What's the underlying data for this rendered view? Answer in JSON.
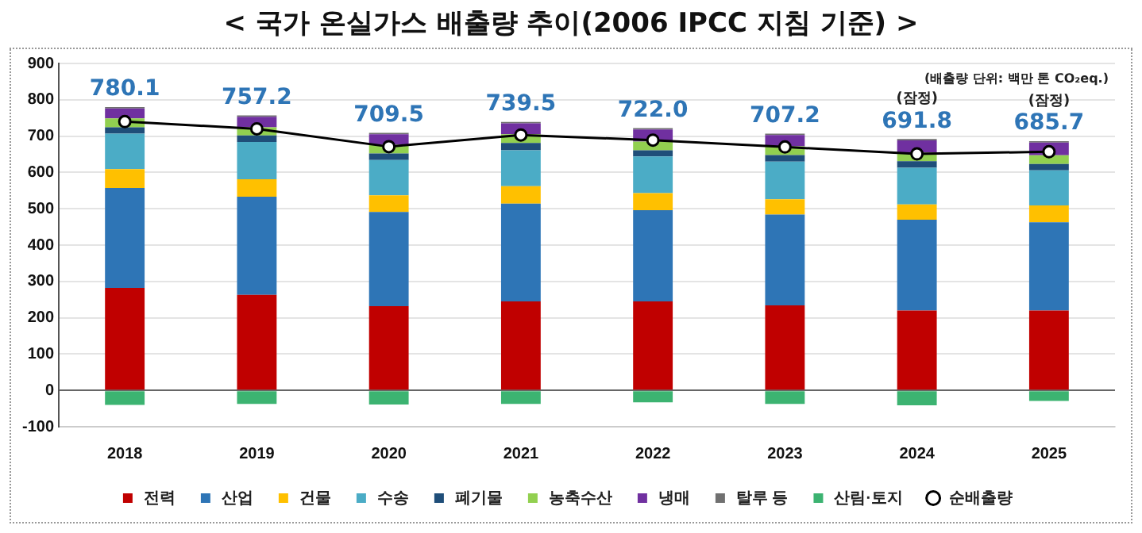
{
  "chart_data": {
    "type": "bar",
    "title": "< 국가 온실가스 배출량 추이(2006 IPCC 지침 기준) >",
    "stacked": true,
    "categories": [
      "2018",
      "2019",
      "2020",
      "2021",
      "2022",
      "2023",
      "2024",
      "2025"
    ],
    "series": [
      {
        "name": "전력",
        "color": "#c00000",
        "values": [
          282,
          263,
          232,
          245,
          245,
          234,
          220,
          220
        ]
      },
      {
        "name": "산업",
        "color": "#2e75b6",
        "values": [
          275,
          270,
          259,
          269,
          251,
          250,
          250,
          243
        ]
      },
      {
        "name": "건물",
        "color": "#ffc000",
        "values": [
          52,
          48,
          46,
          48,
          47,
          42,
          42,
          46
        ]
      },
      {
        "name": "수송",
        "color": "#4bacc6",
        "values": [
          98,
          103,
          97,
          99,
          101,
          104,
          101,
          97
        ]
      },
      {
        "name": "폐기물",
        "color": "#1f4e79",
        "values": [
          17,
          18,
          18,
          20,
          17,
          18,
          18,
          17
        ]
      },
      {
        "name": "농축수산",
        "color": "#92d050",
        "values": [
          25,
          22,
          24,
          24,
          24,
          24,
          24,
          24
        ]
      },
      {
        "name": "냉매",
        "color": "#7030a0",
        "values": [
          27,
          29,
          29,
          30,
          33,
          31,
          33,
          35
        ]
      },
      {
        "name": "탈루 등",
        "color": "#707070",
        "values": [
          4,
          4,
          4,
          4,
          4,
          4,
          4,
          4
        ]
      },
      {
        "name": "산림·토지",
        "color": "#3cb371",
        "values": [
          -40,
          -37,
          -39,
          -37,
          -33,
          -37,
          -41,
          -29
        ]
      },
      {
        "name": "순배출량",
        "type": "line",
        "color": "#000000",
        "marker": "circle",
        "values": [
          740,
          720,
          671,
          703,
          689,
          670,
          651,
          657
        ]
      }
    ],
    "annotations": [
      "(배출량 단위: 백만 톤 CO₂eq.)",
      {
        "text": "780.1",
        "x": "2018",
        "y": 780.1
      },
      {
        "text": "757.2",
        "x": "2019",
        "y": 757.2
      },
      {
        "text": "709.5",
        "x": "2020",
        "y": 709.5
      },
      {
        "text": "739.5",
        "x": "2021",
        "y": 739.5
      },
      {
        "text": "722.0",
        "x": "2022",
        "y": 722.0
      },
      {
        "text": "707.2",
        "x": "2023",
        "y": 707.2
      },
      {
        "text": "691.8",
        "x": "2024",
        "y": 691.8
      },
      {
        "text": "685.7",
        "x": "2025",
        "y": 685.7
      },
      {
        "text": "(잠정)",
        "x": "2024",
        "y": 691.8
      },
      {
        "text": "(잠정)",
        "x": "2025",
        "y": 685.7
      }
    ],
    "ylim": [
      -100,
      900
    ],
    "yticks": [
      -100,
      0,
      100,
      200,
      300,
      400,
      500,
      600,
      700,
      800,
      900
    ],
    "grid": "y",
    "legend": "bottom"
  }
}
